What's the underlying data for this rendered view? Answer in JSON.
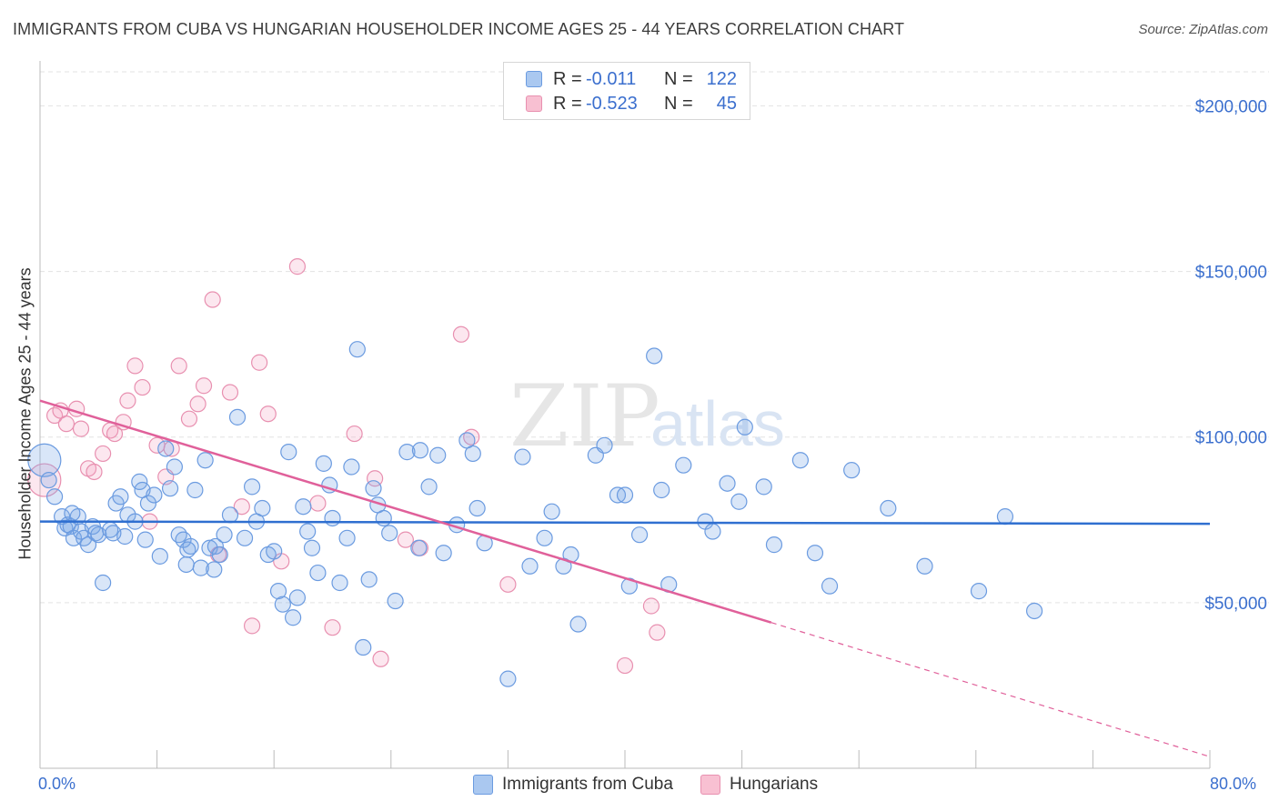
{
  "title": "IMMIGRANTS FROM CUBA VS HUNGARIAN HOUSEHOLDER INCOME AGES 25 - 44 YEARS CORRELATION CHART",
  "source": "Source: ZipAtlas.com",
  "watermark": {
    "zip": "ZIP",
    "atlas": "atlas"
  },
  "legend": {
    "rows": [
      {
        "r_label": "R =",
        "r_value": "-0.011",
        "n_label": "N =",
        "n_value": "122",
        "fill": "#aac8f0",
        "stroke": "#6b9be0"
      },
      {
        "r_label": "R =",
        "r_value": "-0.523",
        "n_label": "N =",
        "n_value": "45",
        "fill": "#f8c0d2",
        "stroke": "#e890b0"
      }
    ]
  },
  "colors": {
    "blue": "#6b9be0",
    "blue_fill": "rgba(120,165,230,0.28)",
    "blue_line": "#2f6fd0",
    "pink": "#e890b0",
    "pink_fill": "rgba(245,160,190,0.25)",
    "pink_line": "#e0609a",
    "grid": "#e3e3e3",
    "tick_label": "#3b6fce"
  },
  "chart_data": {
    "type": "scatter",
    "title": "IMMIGRANTS FROM CUBA VS HUNGARIAN HOUSEHOLDER INCOME AGES 25 - 44 YEARS CORRELATION CHART",
    "xlabel": "",
    "ylabel": "Householder Income Ages 25 - 44 years",
    "xlim": [
      0,
      80
    ],
    "ylim": [
      0,
      210000
    ],
    "x_tick_labels": [
      "0.0%",
      "80.0%"
    ],
    "y_ticks": [
      50000,
      100000,
      150000,
      200000
    ],
    "y_tick_labels": [
      "$50,000",
      "$100,000",
      "$150,000",
      "$200,000"
    ],
    "grid": true,
    "legend_position": "top-center",
    "series": [
      {
        "name": "Immigrants from Cuba",
        "color": "#6b9be0",
        "trend": {
          "x0": 0,
          "y0": 74500,
          "x1": 80,
          "y1": 73800
        },
        "points": [
          [
            0.3,
            93000
          ],
          [
            0.6,
            87000
          ],
          [
            1.0,
            82000
          ],
          [
            1.5,
            76000
          ],
          [
            1.7,
            72500
          ],
          [
            1.9,
            73500
          ],
          [
            2.1,
            73000
          ],
          [
            2.3,
            69500
          ],
          [
            2.6,
            76000
          ],
          [
            2.8,
            71500
          ],
          [
            3.0,
            69500
          ],
          [
            3.3,
            67500
          ],
          [
            3.6,
            73000
          ],
          [
            3.8,
            71000
          ],
          [
            4.0,
            70500
          ],
          [
            4.3,
            56000
          ],
          [
            4.8,
            72000
          ],
          [
            5.2,
            80000
          ],
          [
            5.5,
            82000
          ],
          [
            5.8,
            70000
          ],
          [
            6.0,
            76500
          ],
          [
            6.5,
            74500
          ],
          [
            6.8,
            86500
          ],
          [
            7.0,
            84000
          ],
          [
            7.4,
            80000
          ],
          [
            7.8,
            82500
          ],
          [
            8.2,
            64000
          ],
          [
            8.6,
            96500
          ],
          [
            8.9,
            84500
          ],
          [
            9.2,
            91000
          ],
          [
            9.5,
            70500
          ],
          [
            9.8,
            69000
          ],
          [
            10.0,
            61500
          ],
          [
            10.3,
            67000
          ],
          [
            10.6,
            84000
          ],
          [
            11.0,
            60500
          ],
          [
            11.3,
            93000
          ],
          [
            11.6,
            66500
          ],
          [
            12.0,
            67000
          ],
          [
            12.3,
            64500
          ],
          [
            12.6,
            70500
          ],
          [
            13.0,
            76500
          ],
          [
            13.5,
            106000
          ],
          [
            14.0,
            69500
          ],
          [
            14.5,
            85000
          ],
          [
            14.8,
            74500
          ],
          [
            15.2,
            78500
          ],
          [
            15.6,
            64500
          ],
          [
            16.0,
            65500
          ],
          [
            16.3,
            53500
          ],
          [
            16.6,
            49500
          ],
          [
            17.0,
            95500
          ],
          [
            17.3,
            45500
          ],
          [
            17.6,
            51500
          ],
          [
            18.0,
            79000
          ],
          [
            18.3,
            71500
          ],
          [
            18.6,
            66500
          ],
          [
            19.0,
            59000
          ],
          [
            19.4,
            92000
          ],
          [
            19.8,
            85500
          ],
          [
            20.0,
            75500
          ],
          [
            20.5,
            56000
          ],
          [
            21.0,
            69500
          ],
          [
            21.3,
            91000
          ],
          [
            21.7,
            126500
          ],
          [
            22.1,
            36500
          ],
          [
            22.5,
            57000
          ],
          [
            22.8,
            84500
          ],
          [
            23.1,
            79500
          ],
          [
            23.5,
            75500
          ],
          [
            23.9,
            71000
          ],
          [
            24.3,
            50500
          ],
          [
            25.1,
            95500
          ],
          [
            25.9,
            66500
          ],
          [
            26.6,
            85000
          ],
          [
            27.2,
            94500
          ],
          [
            27.6,
            65000
          ],
          [
            28.5,
            73500
          ],
          [
            29.2,
            99000
          ],
          [
            29.6,
            95000
          ],
          [
            29.9,
            78500
          ],
          [
            30.4,
            68000
          ],
          [
            32.0,
            27000
          ],
          [
            33.0,
            94000
          ],
          [
            33.5,
            61000
          ],
          [
            34.5,
            69500
          ],
          [
            35.0,
            77500
          ],
          [
            35.8,
            61000
          ],
          [
            36.3,
            64500
          ],
          [
            36.8,
            43500
          ],
          [
            38.0,
            94500
          ],
          [
            38.6,
            97500
          ],
          [
            39.5,
            82500
          ],
          [
            40.0,
            82500
          ],
          [
            40.3,
            55000
          ],
          [
            41.0,
            70500
          ],
          [
            42.0,
            124500
          ],
          [
            42.5,
            84000
          ],
          [
            43.0,
            55500
          ],
          [
            44.0,
            91500
          ],
          [
            45.5,
            74500
          ],
          [
            46.0,
            71500
          ],
          [
            47.0,
            86000
          ],
          [
            47.8,
            80500
          ],
          [
            48.2,
            103000
          ],
          [
            49.5,
            85000
          ],
          [
            50.2,
            67500
          ],
          [
            52.0,
            93000
          ],
          [
            53.0,
            65000
          ],
          [
            54.0,
            55000
          ],
          [
            55.5,
            90000
          ],
          [
            58.0,
            78500
          ],
          [
            60.5,
            61000
          ],
          [
            64.2,
            53500
          ],
          [
            66.0,
            76000
          ],
          [
            68.0,
            47500
          ],
          [
            2.2,
            77000
          ],
          [
            5.0,
            71000
          ],
          [
            7.2,
            69000
          ],
          [
            26.0,
            96000
          ],
          [
            11.9,
            60000
          ],
          [
            10.1,
            66000
          ]
        ]
      },
      {
        "name": "Hungarians",
        "color": "#e890b0",
        "trend": {
          "x0": 0,
          "y0": 111000,
          "x1": 50,
          "y1": 44000
        },
        "trend_dashed": {
          "x0": 50,
          "y0": 44000,
          "x1": 80,
          "y1": 3500
        },
        "points": [
          [
            0.3,
            87000
          ],
          [
            1.0,
            106500
          ],
          [
            1.4,
            108000
          ],
          [
            1.8,
            104000
          ],
          [
            2.5,
            108500
          ],
          [
            2.8,
            102500
          ],
          [
            3.3,
            90500
          ],
          [
            3.7,
            89500
          ],
          [
            4.3,
            95000
          ],
          [
            4.8,
            102000
          ],
          [
            5.1,
            101000
          ],
          [
            5.7,
            104500
          ],
          [
            6.0,
            111000
          ],
          [
            6.5,
            121500
          ],
          [
            7.0,
            115000
          ],
          [
            7.5,
            74500
          ],
          [
            8.0,
            97500
          ],
          [
            8.6,
            88000
          ],
          [
            9.0,
            96500
          ],
          [
            9.5,
            121500
          ],
          [
            10.2,
            105500
          ],
          [
            10.8,
            110000
          ],
          [
            11.2,
            115500
          ],
          [
            11.8,
            141500
          ],
          [
            12.2,
            64500
          ],
          [
            13.0,
            113500
          ],
          [
            13.8,
            79000
          ],
          [
            14.5,
            43000
          ],
          [
            15.0,
            122500
          ],
          [
            15.6,
            107000
          ],
          [
            16.5,
            62500
          ],
          [
            17.6,
            151500
          ],
          [
            19.0,
            80000
          ],
          [
            20.0,
            42500
          ],
          [
            21.5,
            101000
          ],
          [
            22.9,
            87500
          ],
          [
            23.3,
            33000
          ],
          [
            25.0,
            69000
          ],
          [
            26.0,
            66500
          ],
          [
            28.8,
            131000
          ],
          [
            29.5,
            100000
          ],
          [
            32.0,
            55500
          ],
          [
            40.0,
            31000
          ],
          [
            41.8,
            49000
          ],
          [
            42.2,
            41000
          ]
        ]
      }
    ]
  }
}
